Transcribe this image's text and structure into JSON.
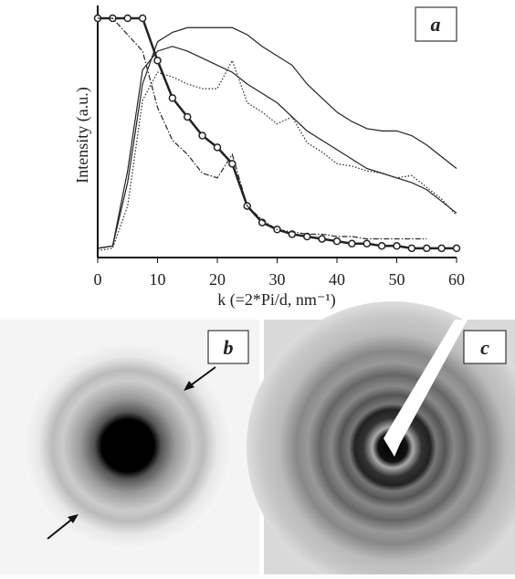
{
  "chart_data": {
    "type": "line",
    "panel": "a",
    "xlabel": "k (=2*Pi/d, nm⁻¹)",
    "ylabel": "Intensity (a.u.)",
    "x": [
      0,
      2.5,
      5,
      7.5,
      10,
      12.5,
      15,
      17.5,
      20,
      22.5,
      25,
      27.5,
      30,
      32.5,
      35,
      37.5,
      40,
      42.5,
      45,
      47.5,
      50,
      52.5,
      55,
      57.5,
      60
    ],
    "xlim": [
      0,
      60
    ],
    "xticks": [
      0,
      10,
      20,
      30,
      40,
      50,
      60
    ],
    "ylim": [
      0,
      1
    ],
    "series": [
      {
        "color": "#222",
        "style": "solid",
        "values": [
          0.02,
          0.03,
          0.3,
          0.72,
          0.9,
          0.94,
          0.96,
          0.96,
          0.96,
          0.96,
          0.93,
          0.88,
          0.84,
          0.8,
          0.72,
          0.66,
          0.6,
          0.56,
          0.53,
          0.52,
          0.52,
          0.5,
          0.46,
          0.41,
          0.36
        ]
      },
      {
        "color": "#222",
        "style": "solid",
        "values": [
          0.02,
          0.03,
          0.35,
          0.78,
          0.86,
          0.88,
          0.86,
          0.83,
          0.8,
          0.77,
          0.72,
          0.68,
          0.64,
          0.58,
          0.52,
          0.48,
          0.44,
          0.4,
          0.36,
          0.34,
          0.32,
          0.3,
          0.27,
          0.22,
          0.17
        ]
      },
      {
        "color": "#222",
        "style": "dotted",
        "values": [
          0.01,
          0.02,
          0.2,
          0.65,
          0.77,
          0.75,
          0.72,
          0.7,
          0.7,
          0.82,
          0.64,
          0.6,
          0.55,
          0.58,
          0.47,
          0.43,
          0.38,
          0.37,
          0.35,
          0.34,
          0.32,
          0.33,
          0.28,
          0.23,
          0.16
        ]
      },
      {
        "color": "#222",
        "style": "circles",
        "values": [
          1,
          1,
          1,
          1,
          0.82,
          0.66,
          0.58,
          0.5,
          0.45,
          0.38,
          0.2,
          0.13,
          0.1,
          0.08,
          0.07,
          0.06,
          0.05,
          0.04,
          0.04,
          0.03,
          0.03,
          0.02,
          0.02,
          0.02,
          0.02
        ]
      },
      {
        "color": "#222",
        "style": "dashdot",
        "values": [
          1,
          1,
          0.93,
          0.86,
          0.62,
          0.48,
          0.42,
          0.34,
          0.32,
          0.42,
          0.2,
          0.14,
          0.1,
          0.09,
          0.08,
          0.08,
          0.07,
          0.07,
          0.06,
          0.06,
          0.06,
          0.06,
          0.06,
          null,
          null
        ]
      }
    ]
  },
  "panels": [
    "b",
    "c"
  ]
}
